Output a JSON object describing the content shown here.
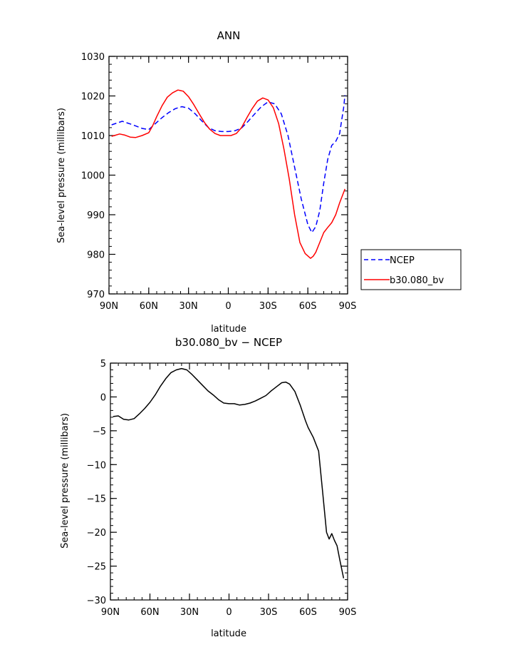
{
  "chart_data": [
    {
      "type": "line",
      "title": "ANN",
      "xlabel": "latitude",
      "ylabel": "Sea-level pressure (millibars)",
      "x_ticks": [
        -90,
        -60,
        -30,
        0,
        30,
        60,
        90
      ],
      "x_tick_labels": [
        "90N",
        "60N",
        "30N",
        "0",
        "30S",
        "60S",
        "90S"
      ],
      "xlim": [
        -90,
        90
      ],
      "ylim": [
        970,
        1030
      ],
      "y_ticks": [
        970,
        980,
        990,
        1000,
        1010,
        1020,
        1030
      ],
      "y_tick_labels": [
        "970",
        "980",
        "990",
        "1000",
        "1010",
        "1020",
        "1030"
      ],
      "legend_position": "right",
      "series": [
        {
          "name": "NCEP",
          "color": "#0000ff",
          "dash": "dashed",
          "x": [
            -88,
            -80,
            -72,
            -65,
            -60,
            -55,
            -50,
            -45,
            -40,
            -35,
            -30,
            -25,
            -20,
            -15,
            -10,
            -5,
            0,
            5,
            10,
            15,
            20,
            25,
            30,
            35,
            40,
            45,
            50,
            55,
            60,
            63,
            66,
            69,
            72,
            75,
            78,
            81,
            84,
            87,
            88
          ],
          "values": [
            1012.7,
            1013.6,
            1012.7,
            1011.8,
            1011.5,
            1013.0,
            1014.5,
            1015.8,
            1016.8,
            1017.3,
            1016.9,
            1015.5,
            1013.7,
            1012.0,
            1011.2,
            1011.0,
            1011.0,
            1011.2,
            1011.9,
            1013.6,
            1015.5,
            1017.3,
            1018.5,
            1018.0,
            1015.5,
            1010.0,
            1002.0,
            994.0,
            987.5,
            985.5,
            987.0,
            991.0,
            998.0,
            1004.0,
            1007.5,
            1008.5,
            1010.5,
            1017.0,
            1020.2
          ]
        },
        {
          "name": "b30.080_bv",
          "color": "#ff0000",
          "dash": "solid",
          "x": [
            -88,
            -82,
            -78,
            -74,
            -70,
            -65,
            -60,
            -57,
            -54,
            -50,
            -46,
            -42,
            -38,
            -34,
            -30,
            -26,
            -22,
            -18,
            -14,
            -10,
            -6,
            -2,
            2,
            6,
            10,
            14,
            18,
            22,
            26,
            30,
            34,
            38,
            42,
            46,
            50,
            54,
            58,
            62,
            64,
            66,
            69,
            72,
            75,
            78,
            81,
            84,
            88
          ],
          "values": [
            1009.8,
            1010.4,
            1010.1,
            1009.6,
            1009.5,
            1010.0,
            1010.7,
            1012.5,
            1014.8,
            1017.5,
            1019.7,
            1020.8,
            1021.5,
            1021.2,
            1019.8,
            1017.8,
            1015.5,
            1013.3,
            1011.6,
            1010.5,
            1010.0,
            1010.0,
            1010.0,
            1010.5,
            1012.0,
            1014.5,
            1016.8,
            1018.7,
            1019.5,
            1019.0,
            1017.0,
            1013.0,
            1006.5,
            999.0,
            990.0,
            983.0,
            980.2,
            979.0,
            979.5,
            980.5,
            983.0,
            985.5,
            986.8,
            988.0,
            990.0,
            993.0,
            996.5
          ]
        }
      ],
      "legend": [
        "NCEP",
        "b30.080_bv"
      ]
    },
    {
      "type": "line",
      "title": "b30.080_bv − NCEP",
      "xlabel": "latitude",
      "ylabel": "Sea-level pressure (millibars)",
      "x_ticks": [
        -90,
        -60,
        -30,
        0,
        30,
        60,
        90
      ],
      "x_tick_labels": [
        "90N",
        "60N",
        "30N",
        "0",
        "30S",
        "60S",
        "90S"
      ],
      "xlim": [
        -90,
        90
      ],
      "ylim": [
        -30,
        5
      ],
      "y_ticks": [
        -30,
        -25,
        -20,
        -15,
        -10,
        -5,
        0,
        5
      ],
      "y_tick_labels": [
        "−30",
        "−25",
        "−20",
        "−15",
        "−10",
        "−5",
        "0",
        "5"
      ],
      "series": [
        {
          "color": "#000000",
          "dash": "solid",
          "x": [
            -88,
            -84,
            -80,
            -76,
            -72,
            -68,
            -64,
            -60,
            -56,
            -52,
            -48,
            -44,
            -40,
            -36,
            -32,
            -28,
            -24,
            -20,
            -16,
            -12,
            -8,
            -4,
            0,
            4,
            8,
            12,
            16,
            20,
            24,
            28,
            32,
            36,
            40,
            43,
            46,
            50,
            54,
            58,
            60,
            64,
            68,
            71,
            74,
            76,
            78,
            80,
            82,
            84,
            87
          ],
          "values": [
            -2.9,
            -2.8,
            -3.3,
            -3.4,
            -3.2,
            -2.5,
            -1.7,
            -0.8,
            0.3,
            1.6,
            2.7,
            3.6,
            4.0,
            4.2,
            4.0,
            3.3,
            2.5,
            1.7,
            0.9,
            0.3,
            -0.4,
            -0.9,
            -1.0,
            -1.0,
            -1.2,
            -1.1,
            -0.9,
            -0.6,
            -0.2,
            0.2,
            0.9,
            1.5,
            2.1,
            2.2,
            1.9,
            0.8,
            -1.2,
            -3.5,
            -4.5,
            -6.0,
            -8.0,
            -14.0,
            -20.0,
            -21.0,
            -20.2,
            -21.2,
            -22.0,
            -24.0,
            -26.8
          ]
        }
      ]
    }
  ]
}
